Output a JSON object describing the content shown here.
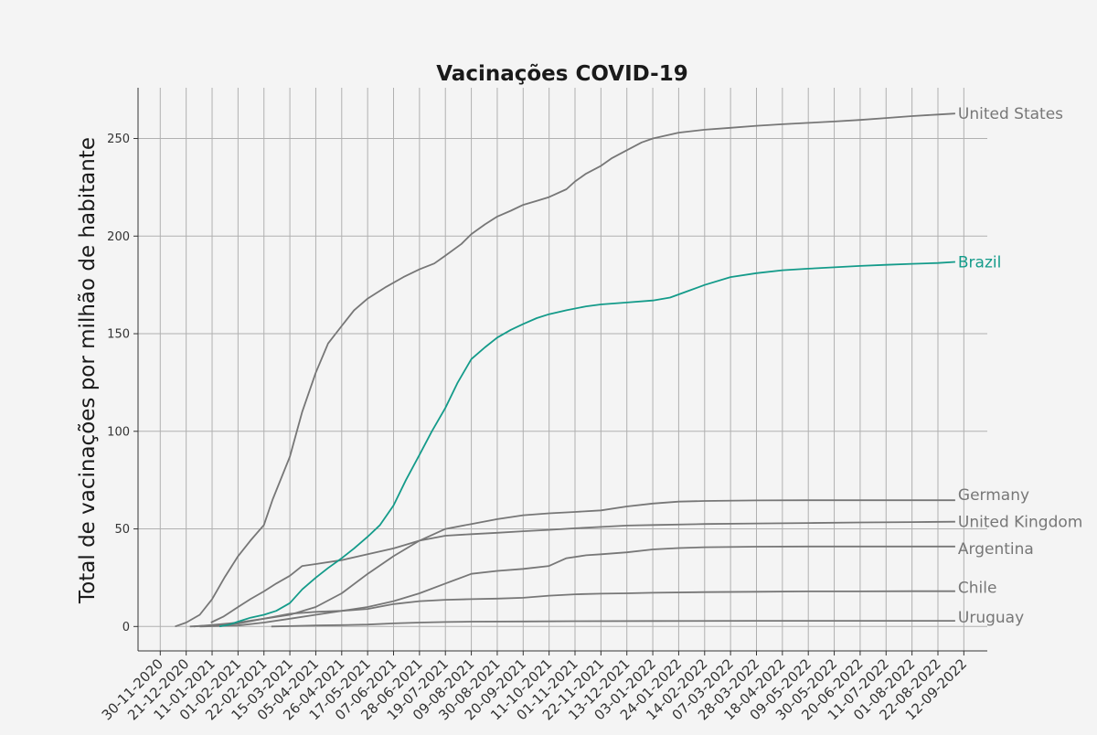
{
  "colors": {
    "background": "#f4f4f4",
    "grid": "#b0b0b0",
    "axis": "#333333",
    "default_series": "#777777",
    "highlight_series": "#149b8a"
  },
  "chart_data": {
    "type": "line",
    "title": "Vacinações COVID-19",
    "xlabel": "",
    "ylabel": "Total de vacinações por milhão de habitante",
    "ylim": [
      -12.5,
      276
    ],
    "xlim": [
      "2020-11-12",
      "2022-10-01"
    ],
    "yticks": [
      0,
      50,
      100,
      150,
      200,
      250
    ],
    "xticks": [
      "30-11-2020",
      "21-12-2020",
      "11-01-2021",
      "01-02-2021",
      "22-02-2021",
      "15-03-2021",
      "05-04-2021",
      "26-04-2021",
      "17-05-2021",
      "07-06-2021",
      "28-06-2021",
      "19-07-2021",
      "09-08-2021",
      "30-08-2021",
      "20-09-2021",
      "11-10-2021",
      "01-11-2021",
      "22-11-2021",
      "13-12-2021",
      "03-01-2022",
      "24-01-2022",
      "14-02-2022",
      "07-03-2022",
      "28-03-2022",
      "18-04-2022",
      "09-05-2022",
      "30-05-2022",
      "20-06-2022",
      "11-07-2022",
      "01-08-2022",
      "22-08-2022",
      "12-09-2022"
    ],
    "grid": true,
    "legend": "labels at line ends",
    "series": [
      {
        "name": "United States",
        "color": "#777777",
        "highlight": false,
        "points": [
          [
            "2020-12-12",
            0
          ],
          [
            "2020-12-21",
            2
          ],
          [
            "2021-01-01",
            6
          ],
          [
            "2021-01-11",
            14
          ],
          [
            "2021-01-21",
            25
          ],
          [
            "2021-02-01",
            36
          ],
          [
            "2021-02-11",
            44
          ],
          [
            "2021-02-22",
            52
          ],
          [
            "2021-03-01",
            65
          ],
          [
            "2021-03-15",
            87
          ],
          [
            "2021-03-25",
            110
          ],
          [
            "2021-04-05",
            130
          ],
          [
            "2021-04-15",
            145
          ],
          [
            "2021-04-26",
            154
          ],
          [
            "2021-05-06",
            162
          ],
          [
            "2021-05-17",
            168
          ],
          [
            "2021-06-01",
            174
          ],
          [
            "2021-06-15",
            179
          ],
          [
            "2021-06-28",
            183
          ],
          [
            "2021-07-10",
            186
          ],
          [
            "2021-07-19",
            190
          ],
          [
            "2021-08-01",
            196
          ],
          [
            "2021-08-09",
            201
          ],
          [
            "2021-08-20",
            206
          ],
          [
            "2021-08-30",
            210
          ],
          [
            "2021-09-10",
            213
          ],
          [
            "2021-09-20",
            216
          ],
          [
            "2021-10-01",
            218
          ],
          [
            "2021-10-11",
            220
          ],
          [
            "2021-10-25",
            224
          ],
          [
            "2021-11-01",
            228
          ],
          [
            "2021-11-10",
            232
          ],
          [
            "2021-11-22",
            236
          ],
          [
            "2021-12-01",
            240
          ],
          [
            "2021-12-13",
            244
          ],
          [
            "2021-12-25",
            248
          ],
          [
            "2022-01-03",
            250
          ],
          [
            "2022-01-24",
            253
          ],
          [
            "2022-02-14",
            254.5
          ],
          [
            "2022-03-07",
            255.5
          ],
          [
            "2022-03-28",
            256.5
          ],
          [
            "2022-04-18",
            257.3
          ],
          [
            "2022-05-09",
            258
          ],
          [
            "2022-05-30",
            258.7
          ],
          [
            "2022-06-20",
            259.5
          ],
          [
            "2022-07-11",
            260.5
          ],
          [
            "2022-08-01",
            261.5
          ],
          [
            "2022-08-22",
            262.3
          ],
          [
            "2022-09-05",
            262.8
          ]
        ]
      },
      {
        "name": "Brazil",
        "color": "#149b8a",
        "highlight": true,
        "points": [
          [
            "2021-01-17",
            0
          ],
          [
            "2021-01-25",
            1
          ],
          [
            "2021-02-01",
            2.5
          ],
          [
            "2021-02-11",
            4.5
          ],
          [
            "2021-02-22",
            6
          ],
          [
            "2021-03-04",
            8
          ],
          [
            "2021-03-15",
            12
          ],
          [
            "2021-03-25",
            19
          ],
          [
            "2021-04-05",
            25
          ],
          [
            "2021-04-15",
            30
          ],
          [
            "2021-04-26",
            35
          ],
          [
            "2021-05-06",
            40
          ],
          [
            "2021-05-17",
            46
          ],
          [
            "2021-05-27",
            52
          ],
          [
            "2021-06-07",
            62
          ],
          [
            "2021-06-17",
            75
          ],
          [
            "2021-06-28",
            88
          ],
          [
            "2021-07-08",
            100
          ],
          [
            "2021-07-19",
            112
          ],
          [
            "2021-07-29",
            125
          ],
          [
            "2021-08-09",
            137
          ],
          [
            "2021-08-20",
            143
          ],
          [
            "2021-08-30",
            148
          ],
          [
            "2021-09-10",
            152
          ],
          [
            "2021-09-20",
            155
          ],
          [
            "2021-10-01",
            158
          ],
          [
            "2021-10-11",
            160
          ],
          [
            "2021-10-25",
            162
          ],
          [
            "2021-11-10",
            164
          ],
          [
            "2021-11-22",
            165
          ],
          [
            "2021-12-13",
            166
          ],
          [
            "2022-01-03",
            167
          ],
          [
            "2022-01-17",
            168.5
          ],
          [
            "2022-02-01",
            172
          ],
          [
            "2022-02-14",
            175
          ],
          [
            "2022-03-07",
            179
          ],
          [
            "2022-03-28",
            181
          ],
          [
            "2022-04-18",
            182.5
          ],
          [
            "2022-05-09",
            183.3
          ],
          [
            "2022-05-30",
            184
          ],
          [
            "2022-06-20",
            184.7
          ],
          [
            "2022-07-11",
            185.3
          ],
          [
            "2022-08-01",
            185.8
          ],
          [
            "2022-08-22",
            186.2
          ],
          [
            "2022-09-05",
            186.8
          ]
        ]
      },
      {
        "name": "Germany",
        "color": "#777777",
        "highlight": false,
        "points": [
          [
            "2020-12-27",
            0
          ],
          [
            "2021-01-11",
            0.8
          ],
          [
            "2021-02-01",
            2
          ],
          [
            "2021-02-22",
            4
          ],
          [
            "2021-03-15",
            6
          ],
          [
            "2021-04-05",
            10
          ],
          [
            "2021-04-26",
            17
          ],
          [
            "2021-05-17",
            27
          ],
          [
            "2021-06-07",
            36
          ],
          [
            "2021-06-28",
            44
          ],
          [
            "2021-07-19",
            50
          ],
          [
            "2021-08-09",
            52.5
          ],
          [
            "2021-08-30",
            55
          ],
          [
            "2021-09-20",
            57
          ],
          [
            "2021-10-11",
            58
          ],
          [
            "2021-11-01",
            58.7
          ],
          [
            "2021-11-22",
            59.5
          ],
          [
            "2021-12-13",
            61.5
          ],
          [
            "2022-01-03",
            63
          ],
          [
            "2022-01-24",
            64
          ],
          [
            "2022-02-14",
            64.3
          ],
          [
            "2022-03-28",
            64.6
          ],
          [
            "2022-05-09",
            64.7
          ],
          [
            "2022-06-20",
            64.7
          ],
          [
            "2022-08-01",
            64.7
          ],
          [
            "2022-09-05",
            64.7
          ]
        ]
      },
      {
        "name": "United Kingdom",
        "color": "#777777",
        "highlight": false,
        "points": [
          [
            "2021-01-10",
            2
          ],
          [
            "2021-01-20",
            5
          ],
          [
            "2021-02-01",
            10
          ],
          [
            "2021-02-11",
            14
          ],
          [
            "2021-02-22",
            18
          ],
          [
            "2021-03-04",
            22
          ],
          [
            "2021-03-15",
            26
          ],
          [
            "2021-03-25",
            31
          ],
          [
            "2021-04-05",
            32
          ],
          [
            "2021-04-26",
            34
          ],
          [
            "2021-05-17",
            37
          ],
          [
            "2021-06-07",
            40
          ],
          [
            "2021-06-28",
            44
          ],
          [
            "2021-07-19",
            46.5
          ],
          [
            "2021-08-09",
            47.3
          ],
          [
            "2021-08-30",
            48
          ],
          [
            "2021-09-20",
            48.8
          ],
          [
            "2021-10-11",
            49.5
          ],
          [
            "2021-11-01",
            50.3
          ],
          [
            "2021-11-22",
            51
          ],
          [
            "2021-12-13",
            51.7
          ],
          [
            "2022-01-03",
            52
          ],
          [
            "2022-02-14",
            52.5
          ],
          [
            "2022-03-28",
            52.8
          ],
          [
            "2022-05-09",
            53
          ],
          [
            "2022-06-20",
            53.3
          ],
          [
            "2022-08-01",
            53.5
          ],
          [
            "2022-09-05",
            53.7
          ]
        ]
      },
      {
        "name": "Argentina",
        "color": "#777777",
        "highlight": false,
        "points": [
          [
            "2021-01-01",
            0
          ],
          [
            "2021-02-01",
            0.5
          ],
          [
            "2021-02-22",
            2
          ],
          [
            "2021-03-15",
            4
          ],
          [
            "2021-04-05",
            6
          ],
          [
            "2021-04-26",
            8
          ],
          [
            "2021-05-17",
            10
          ],
          [
            "2021-06-07",
            13
          ],
          [
            "2021-06-28",
            17
          ],
          [
            "2021-07-19",
            22
          ],
          [
            "2021-08-09",
            27
          ],
          [
            "2021-08-30",
            28.5
          ],
          [
            "2021-09-20",
            29.5
          ],
          [
            "2021-10-11",
            31
          ],
          [
            "2021-10-25",
            35
          ],
          [
            "2021-11-10",
            36.5
          ],
          [
            "2021-11-22",
            37
          ],
          [
            "2021-12-13",
            38
          ],
          [
            "2022-01-03",
            39.5
          ],
          [
            "2022-01-24",
            40.2
          ],
          [
            "2022-02-14",
            40.6
          ],
          [
            "2022-03-28",
            40.9
          ],
          [
            "2022-05-09",
            41
          ],
          [
            "2022-06-20",
            41
          ],
          [
            "2022-08-01",
            41
          ],
          [
            "2022-09-05",
            41
          ]
        ]
      },
      {
        "name": "Chile",
        "color": "#777777",
        "highlight": false,
        "points": [
          [
            "2020-12-24",
            0
          ],
          [
            "2021-01-11",
            0.5
          ],
          [
            "2021-02-01",
            1.5
          ],
          [
            "2021-02-22",
            4
          ],
          [
            "2021-03-15",
            6.5
          ],
          [
            "2021-04-05",
            7.5
          ],
          [
            "2021-04-26",
            8
          ],
          [
            "2021-05-17",
            9
          ],
          [
            "2021-06-07",
            11.5
          ],
          [
            "2021-06-28",
            13
          ],
          [
            "2021-07-19",
            13.7
          ],
          [
            "2021-08-09",
            14
          ],
          [
            "2021-08-30",
            14.3
          ],
          [
            "2021-09-20",
            14.7
          ],
          [
            "2021-10-11",
            15.8
          ],
          [
            "2021-11-01",
            16.5
          ],
          [
            "2021-11-22",
            16.8
          ],
          [
            "2021-12-13",
            17
          ],
          [
            "2022-01-03",
            17.3
          ],
          [
            "2022-02-14",
            17.6
          ],
          [
            "2022-03-28",
            17.8
          ],
          [
            "2022-05-09",
            18
          ],
          [
            "2022-06-20",
            18
          ],
          [
            "2022-08-01",
            18.1
          ],
          [
            "2022-09-05",
            18.1
          ]
        ]
      },
      {
        "name": "Uruguay",
        "color": "#777777",
        "highlight": false,
        "points": [
          [
            "2021-02-28",
            0
          ],
          [
            "2021-03-15",
            0.2
          ],
          [
            "2021-04-05",
            0.5
          ],
          [
            "2021-04-26",
            0.7
          ],
          [
            "2021-05-17",
            1
          ],
          [
            "2021-06-07",
            1.6
          ],
          [
            "2021-06-28",
            2
          ],
          [
            "2021-07-19",
            2.3
          ],
          [
            "2021-08-09",
            2.5
          ],
          [
            "2021-09-20",
            2.6
          ],
          [
            "2021-11-01",
            2.7
          ],
          [
            "2022-01-03",
            2.8
          ],
          [
            "2022-03-28",
            2.9
          ],
          [
            "2022-06-20",
            2.9
          ],
          [
            "2022-09-05",
            2.9
          ]
        ]
      }
    ]
  }
}
